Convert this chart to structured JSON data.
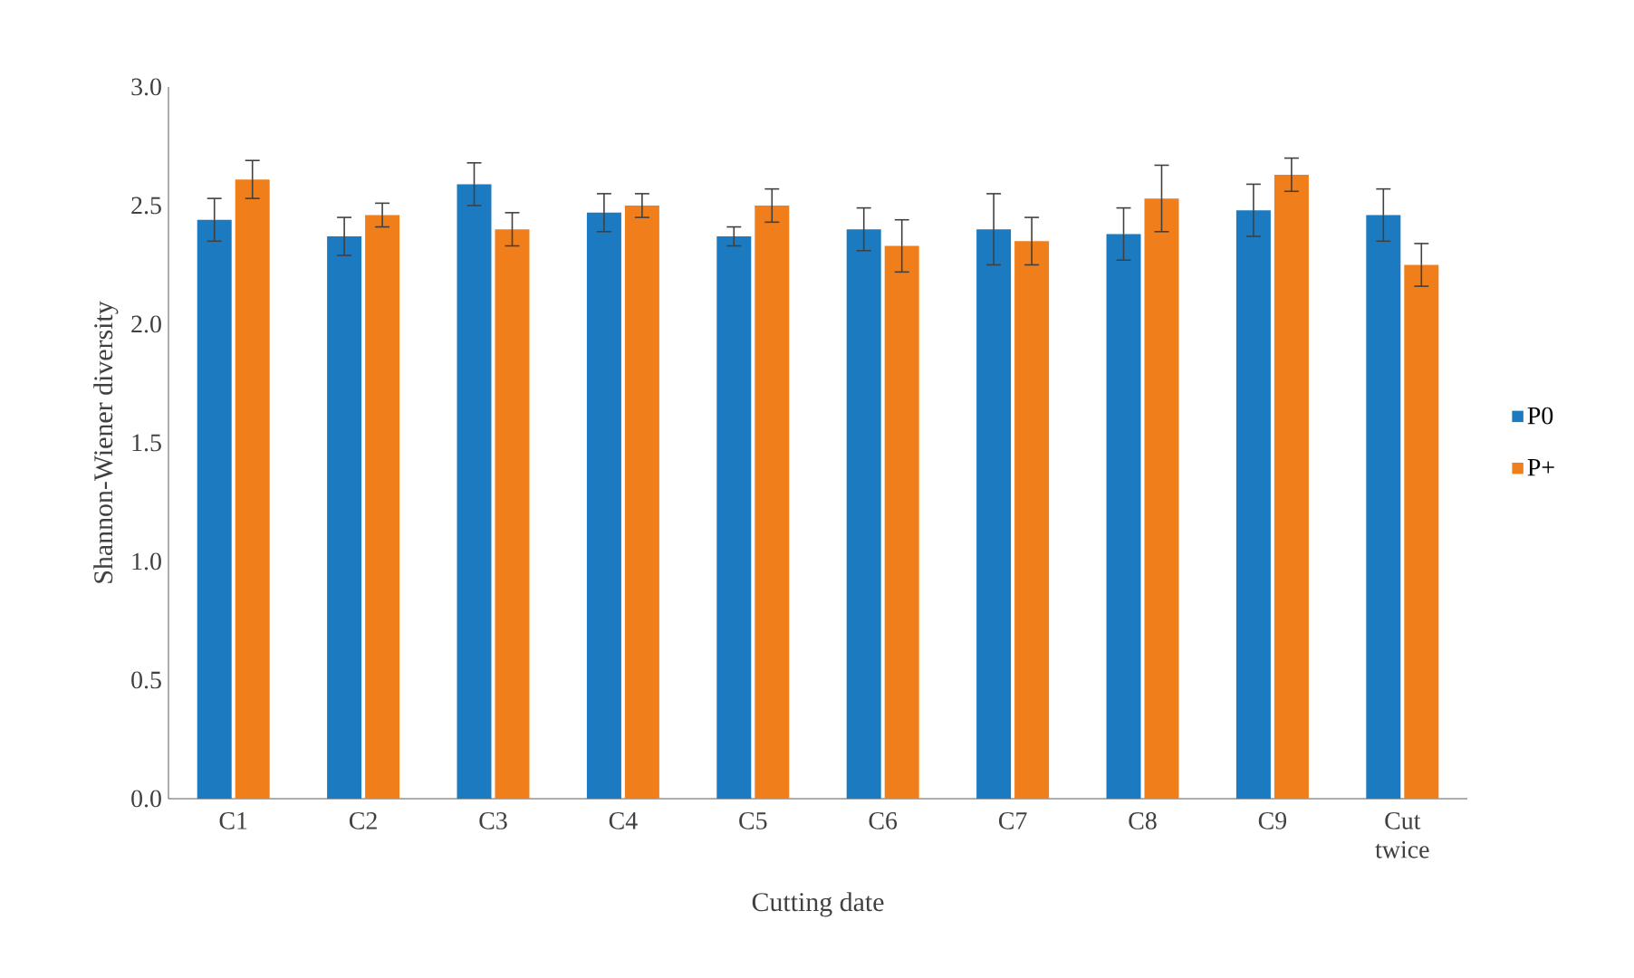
{
  "chart_data": {
    "type": "bar",
    "xlabel": "Cutting date",
    "ylabel": "Shannon-Wiener diversity",
    "categories": [
      "C1",
      "C2",
      "C3",
      "C4",
      "C5",
      "C6",
      "C7",
      "C8",
      "C9",
      "Cut twice"
    ],
    "series": [
      {
        "name": "P0",
        "color": "#1c7bc0",
        "values": [
          2.44,
          2.37,
          2.59,
          2.47,
          2.37,
          2.4,
          2.4,
          2.38,
          2.48,
          2.46
        ],
        "errors": [
          0.09,
          0.08,
          0.09,
          0.08,
          0.04,
          0.09,
          0.15,
          0.11,
          0.11,
          0.11
        ]
      },
      {
        "name": "P+",
        "color": "#f07f1b",
        "values": [
          2.61,
          2.46,
          2.4,
          2.5,
          2.5,
          2.33,
          2.35,
          2.53,
          2.63,
          2.25
        ],
        "errors": [
          0.08,
          0.05,
          0.07,
          0.05,
          0.07,
          0.11,
          0.1,
          0.14,
          0.07,
          0.09
        ]
      }
    ],
    "ylim": [
      0,
      3
    ],
    "yticks": [
      {
        "value": 0,
        "label": "0.0"
      },
      {
        "value": 0.5,
        "label": "0.5"
      },
      {
        "value": 1,
        "label": "1.0"
      },
      {
        "value": 1.5,
        "label": "1.5"
      },
      {
        "value": 2,
        "label": "2.0"
      },
      {
        "value": 2.5,
        "label": "2.5"
      },
      {
        "value": 3,
        "label": "3.0"
      }
    ],
    "grid": false,
    "legend": "right"
  }
}
